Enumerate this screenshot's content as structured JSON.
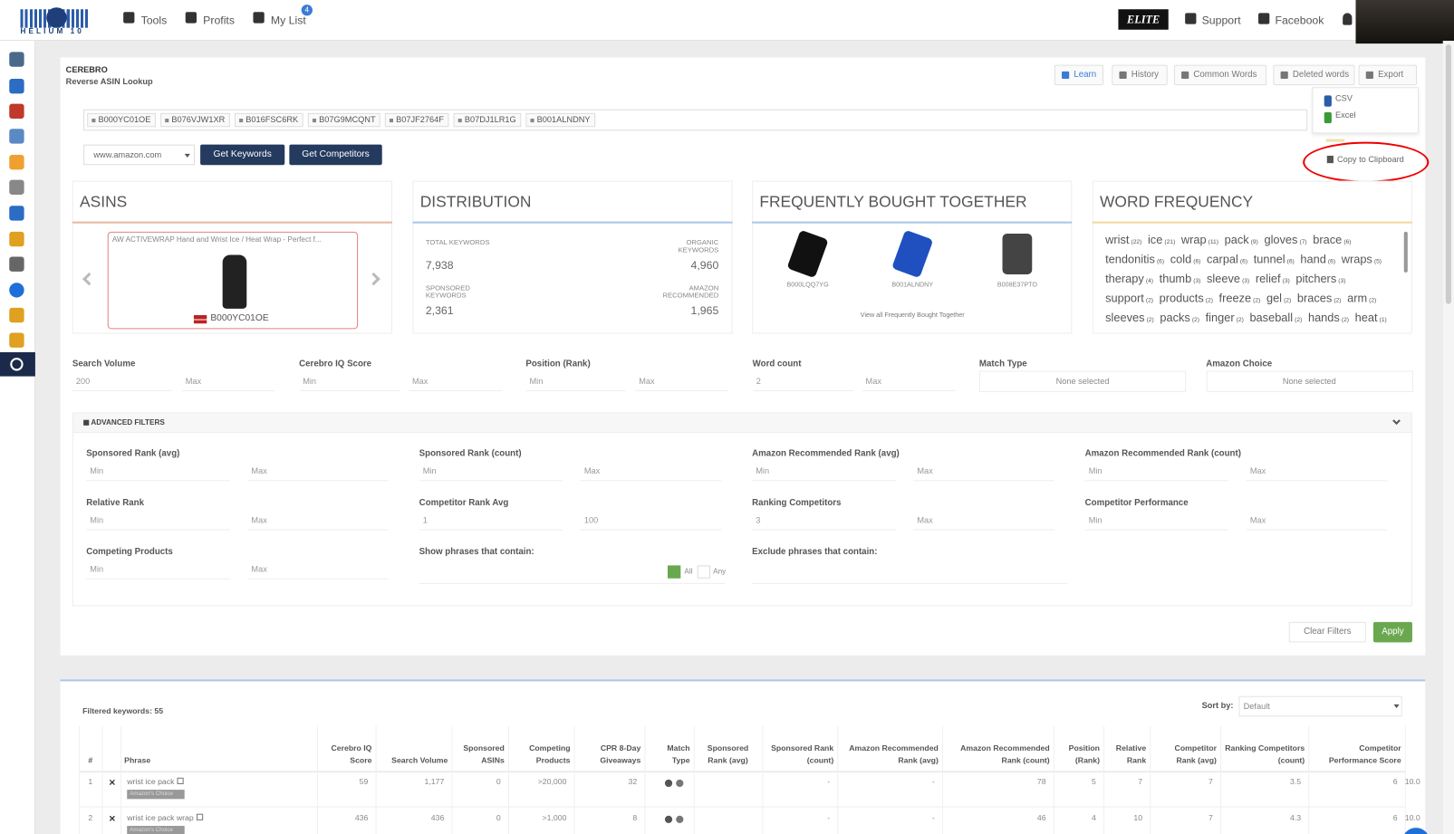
{
  "nav": {
    "logo": "HELIUM 10",
    "items": [
      "Tools",
      "Profits",
      "My List"
    ],
    "badge": "4",
    "plan": "ELITE",
    "links": [
      "Support",
      "Facebook"
    ]
  },
  "header": {
    "title": "CEREBRO",
    "subtitle": "Reverse ASIN Lookup",
    "buttons": [
      "Learn",
      "History",
      "Common Words",
      "Deleted words",
      "Export"
    ],
    "export_menu": [
      "CSV",
      "Excel",
      "Copy to Clipboard"
    ]
  },
  "search": {
    "asins": [
      "B000YC01OE",
      "B076VJW1XR",
      "B016FSC6RK",
      "B07G9MCQNT",
      "B07JF2764F",
      "B07DJ1LR1G",
      "B001ALNDNY"
    ],
    "marketplace": "www.amazon.com",
    "buttons": [
      "Get Keywords",
      "Get Competitors"
    ]
  },
  "asins_card": {
    "title": "ASINS",
    "product": "AW ACTIVEWRAP Hand and Wrist Ice / Heat Wrap - Perfect f...",
    "asin": "B000YC01OE"
  },
  "distribution": {
    "title": "DISTRIBUTION",
    "stats": [
      {
        "label": "TOTAL KEYWORDS",
        "value": "7,938"
      },
      {
        "label": "ORGANIC KEYWORDS",
        "value": "4,960"
      },
      {
        "label": "SPONSORED KEYWORDS",
        "value": "2,361"
      },
      {
        "label": "AMAZON RECOMMENDED",
        "value": "1,965"
      }
    ]
  },
  "fbt": {
    "title": "FREQUENTLY BOUGHT TOGETHER",
    "products": [
      "B000LQQ7YG",
      "B001ALNDNY",
      "B008E37PTO"
    ],
    "link": "View all Frequently Bought Together"
  },
  "word_frequency": {
    "title": "WORD FREQUENCY",
    "words": [
      {
        "word": "wrist",
        "count": "(22)"
      },
      {
        "word": "ice",
        "count": "(21)"
      },
      {
        "word": "wrap",
        "count": "(11)"
      },
      {
        "word": "pack",
        "count": "(9)"
      },
      {
        "word": "gloves",
        "count": "(7)"
      },
      {
        "word": "brace",
        "count": "(6)"
      },
      {
        "word": "tendonitis",
        "count": "(6)"
      },
      {
        "word": "cold",
        "count": "(6)"
      },
      {
        "word": "carpal",
        "count": "(6)"
      },
      {
        "word": "tunnel",
        "count": "(6)"
      },
      {
        "word": "hand",
        "count": "(6)"
      },
      {
        "word": "wraps",
        "count": "(5)"
      },
      {
        "word": "therapy",
        "count": "(4)"
      },
      {
        "word": "thumb",
        "count": "(3)"
      },
      {
        "word": "sleeve",
        "count": "(3)"
      },
      {
        "word": "relief",
        "count": "(3)"
      },
      {
        "word": "pitchers",
        "count": "(3)"
      },
      {
        "word": "support",
        "count": "(2)"
      },
      {
        "word": "products",
        "count": "(2)"
      },
      {
        "word": "freeze",
        "count": "(2)"
      },
      {
        "word": "gel",
        "count": "(2)"
      },
      {
        "word": "braces",
        "count": "(2)"
      },
      {
        "word": "arm",
        "count": "(2)"
      },
      {
        "word": "sleeves",
        "count": "(2)"
      },
      {
        "word": "packs",
        "count": "(2)"
      },
      {
        "word": "finger",
        "count": "(2)"
      },
      {
        "word": "baseball",
        "count": "(2)"
      },
      {
        "word": "hands",
        "count": "(2)"
      },
      {
        "word": "heat",
        "count": "(1)"
      }
    ]
  },
  "filters": [
    {
      "label": "Search Volume",
      "min": "200",
      "max": "Max"
    },
    {
      "label": "Cerebro IQ Score",
      "min": "Min",
      "max": "Max"
    },
    {
      "label": "Position (Rank)",
      "min": "Min",
      "max": "Max"
    },
    {
      "label": "Word count",
      "min": "2",
      "max": "Max"
    },
    {
      "label": "Match Type",
      "select": "None selected"
    },
    {
      "label": "Amazon Choice",
      "select": "None selected"
    }
  ],
  "advanced": {
    "title": "ADVANCED FILTERS",
    "filters": [
      {
        "label": "Sponsored Rank (avg)",
        "min": "Min",
        "max": "Max"
      },
      {
        "label": "Sponsored Rank (count)",
        "min": "Min",
        "max": "Max"
      },
      {
        "label": "Amazon Recommended Rank (avg)",
        "min": "Min",
        "max": "Max"
      },
      {
        "label": "Amazon Recommended Rank (count)",
        "min": "Min",
        "max": "Max"
      },
      {
        "label": "Relative Rank",
        "min": "Min",
        "max": "Max"
      },
      {
        "label": "Competitor Rank Avg",
        "min": "1",
        "max": "100"
      },
      {
        "label": "Ranking Competitors",
        "min": "3",
        "max": "Max"
      },
      {
        "label": "Competitor Performance",
        "min": "Min",
        "max": "Max"
      },
      {
        "label": "Competing Products",
        "min": "Min",
        "max": "Max"
      }
    ],
    "phrases": {
      "show": "Show phrases that contain:",
      "options": [
        "All",
        "Any"
      ],
      "exclude": "Exclude phrases that contain:"
    }
  },
  "actions": [
    "Clear Filters",
    "Apply"
  ],
  "table": {
    "count": "Filtered keywords: 55",
    "sort_label": "Sort by:",
    "sort": "Default",
    "columns": [
      "#",
      "Phrase",
      "Cerebro IQ Score",
      "Search Volume",
      "Sponsored ASINs",
      "Competing Products",
      "CPR 8-Day Giveaways",
      "Match Type",
      "Sponsored Rank (avg)",
      "Sponsored Rank (count)",
      "Amazon Recommended Rank (avg)",
      "Amazon Recommended Rank (count)",
      "Position (Rank)",
      "Relative Rank",
      "Competitor Rank (avg)",
      "Ranking Competitors (count)",
      "Competitor Performance Score"
    ],
    "rows": [
      {
        "num": "1",
        "phrase": "wrist ice pack",
        "badge": "Amazon's Choice",
        "left": [
          "59",
          "1,177",
          "0",
          ">20,000",
          "32"
        ],
        "right": [
          "-",
          "-",
          "78",
          "5",
          "7",
          "7",
          "3.5",
          "6",
          "10.0"
        ]
      },
      {
        "num": "2",
        "phrase": "wrist ice pack wrap",
        "badge": "Amazon's Choice",
        "left": [
          "436",
          "436",
          "0",
          ">1,000",
          "8"
        ],
        "right": [
          "-",
          "-",
          "46",
          "4",
          "10",
          "7",
          "4.3",
          "6",
          "10.0"
        ]
      }
    ]
  }
}
